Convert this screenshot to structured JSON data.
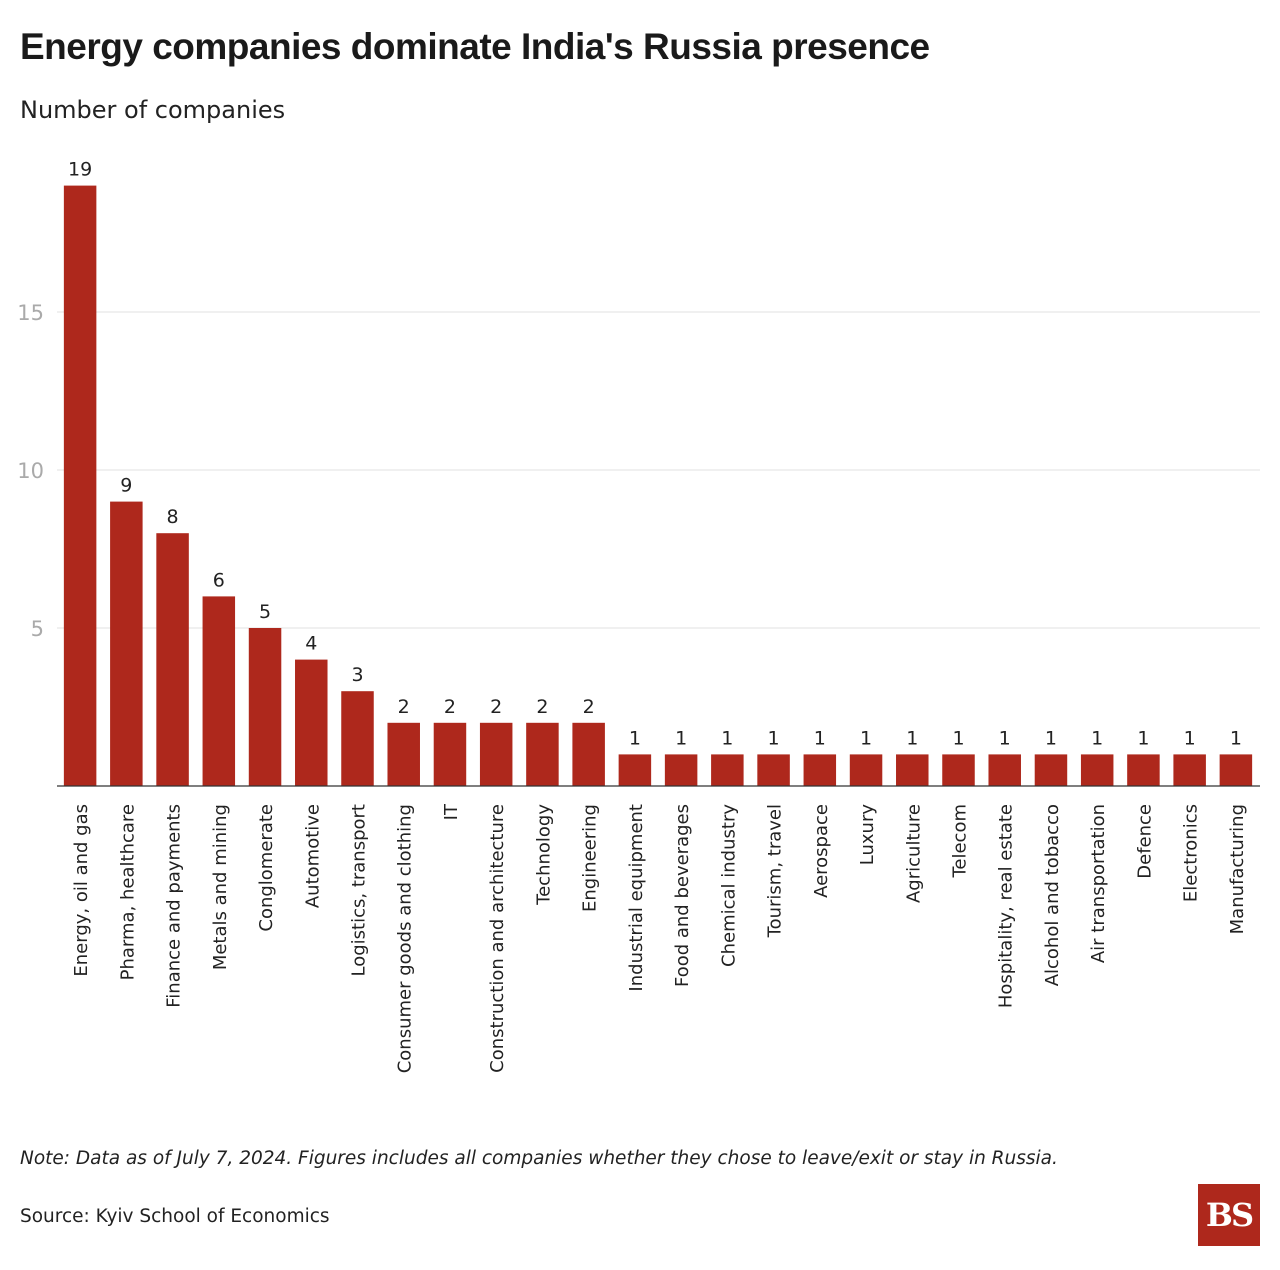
{
  "header": {
    "title": "Energy companies dominate India's Russia presence",
    "subtitle": "Number of companies"
  },
  "footer": {
    "note": "Note: Data as of July 7, 2024. Figures includes all companies whether they chose to leave/exit or stay in Russia.",
    "source": "Source: Kyiv School of Economics",
    "logo_text": "BS"
  },
  "colors": {
    "bar": "#ae281c",
    "logo_bg": "#ae281c",
    "gridline": "#e0e0e0",
    "tick_label": "#aaaaaa",
    "text": "#222222"
  },
  "chart_data": {
    "type": "bar",
    "categories": [
      "Energy, oil and gas",
      "Pharma, healthcare",
      "Finance and payments",
      "Metals and mining",
      "Conglomerate",
      "Automotive",
      "Logistics, transport",
      "Consumer goods and clothing",
      "IT",
      "Construction and architecture",
      "Technology",
      "Engineering",
      "Industrial equipment",
      "Food and beverages",
      "Chemical industry",
      "Tourism, travel",
      "Aerospace",
      "Luxury",
      "Agriculture",
      "Telecom",
      "Hospitality, real estate",
      "Alcohol and tobacco",
      "Air transportation",
      "Defence",
      "Electronics",
      "Manufacturing"
    ],
    "values": [
      19,
      9,
      8,
      6,
      5,
      4,
      3,
      2,
      2,
      2,
      2,
      2,
      1,
      1,
      1,
      1,
      1,
      1,
      1,
      1,
      1,
      1,
      1,
      1,
      1,
      1
    ],
    "ylabel": "Number of companies",
    "yticks": [
      5,
      10,
      15
    ],
    "ylim": [
      0,
      19
    ],
    "grid": true,
    "data_labels": true,
    "xtick_rotation": "vertical"
  }
}
